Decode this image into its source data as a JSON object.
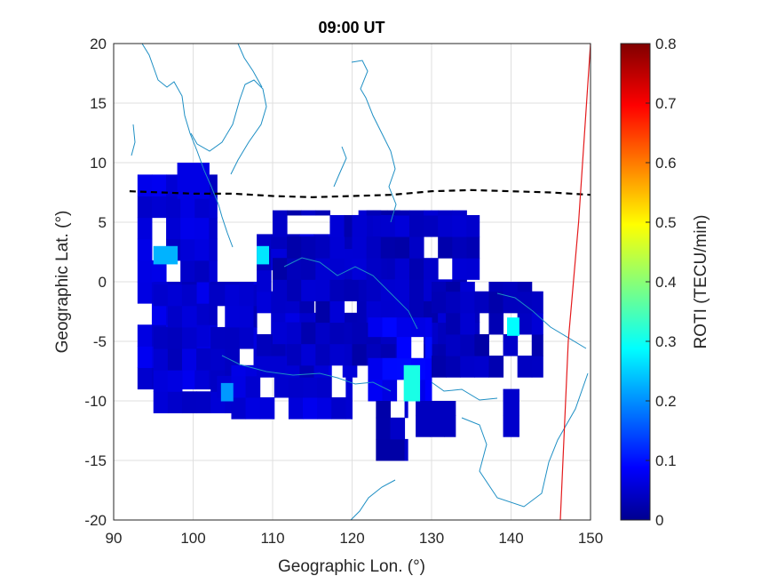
{
  "chart_data": {
    "type": "heatmap",
    "title": "09:00 UT",
    "xlabel": "Geographic Lon. (°)",
    "ylabel": "Geographic Lat. (°)",
    "xlim": [
      90,
      150
    ],
    "ylim": [
      -20,
      20
    ],
    "xticks": [
      "90",
      "100",
      "110",
      "120",
      "130",
      "140",
      "150"
    ],
    "yticks": [
      "20",
      "15",
      "10",
      "5",
      "0",
      "-5",
      "-10",
      "-15",
      "-20"
    ],
    "grid": true,
    "colorbar": {
      "label": "ROTI (TECU/min)",
      "range": [
        0,
        0.8
      ],
      "ticks": [
        "0.8",
        "0.7",
        "0.6",
        "0.5",
        "0.4",
        "0.3",
        "0.2",
        "0.1",
        "0"
      ],
      "colormap": "jet"
    },
    "magnetic_equator_lat": [
      [
        92,
        7.6
      ],
      [
        100,
        7.4
      ],
      [
        105,
        7.4
      ],
      [
        110,
        7.2
      ],
      [
        115,
        7.1
      ],
      [
        120,
        7.2
      ],
      [
        125,
        7.3
      ],
      [
        130,
        7.6
      ],
      [
        135,
        7.7
      ],
      [
        140,
        7.6
      ],
      [
        145,
        7.5
      ],
      [
        150,
        7.3
      ]
    ],
    "red_line": [
      [
        146.2,
        -20
      ],
      [
        147.2,
        -5
      ],
      [
        148.5,
        5
      ],
      [
        149.5,
        15
      ],
      [
        150,
        20
      ]
    ],
    "roti_cells": [
      {
        "lon_range": [
          93,
          103
        ],
        "lat_range": [
          -9,
          9
        ],
        "value": 0.07
      },
      {
        "lon_range": [
          95,
          108
        ],
        "lat_range": [
          -11,
          0
        ],
        "value": 0.06
      },
      {
        "lon_range": [
          103,
          120
        ],
        "lat_range": [
          -11.5,
          -7
        ],
        "value": 0.07
      },
      {
        "lon_range": [
          108,
          122
        ],
        "lat_range": [
          -8,
          4
        ],
        "value": 0.06
      },
      {
        "lon_range": [
          110,
          126
        ],
        "lat_range": [
          -7,
          6
        ],
        "value": 0.05
      },
      {
        "lon_range": [
          120,
          136
        ],
        "lat_range": [
          -7,
          6
        ],
        "value": 0.05
      },
      {
        "lon_range": [
          122,
          130
        ],
        "lat_range": [
          -10,
          -3
        ],
        "value": 0.09
      },
      {
        "lon_range": [
          130,
          144
        ],
        "lat_range": [
          -8,
          0
        ],
        "value": 0.05
      },
      {
        "lon_range": [
          123,
          127
        ],
        "lat_range": [
          -15,
          -10
        ],
        "value": 0.05
      },
      {
        "lon_range": [
          128,
          133
        ],
        "lat_range": [
          -13,
          -10
        ],
        "value": 0.05
      },
      {
        "lon_range": [
          139,
          141
        ],
        "lat_range": [
          -13,
          -9
        ],
        "value": 0.06
      },
      {
        "lon_range": [
          98,
          102
        ],
        "lat_range": [
          7,
          10
        ],
        "value": 0.08
      },
      {
        "lon_range": [
          95,
          98
        ],
        "lat_range": [
          1.5,
          3
        ],
        "value": 0.24
      },
      {
        "lon_range": [
          108,
          109.5
        ],
        "lat_range": [
          1.5,
          3
        ],
        "value": 0.28
      },
      {
        "lon_range": [
          126.5,
          128.5
        ],
        "lat_range": [
          -10,
          -7
        ],
        "value": 0.32
      },
      {
        "lon_range": [
          139.5,
          141
        ],
        "lat_range": [
          -4.5,
          -3
        ],
        "value": 0.3
      },
      {
        "lon_range": [
          103.5,
          105
        ],
        "lat_range": [
          -10,
          -8.5
        ],
        "value": 0.22
      }
    ]
  }
}
